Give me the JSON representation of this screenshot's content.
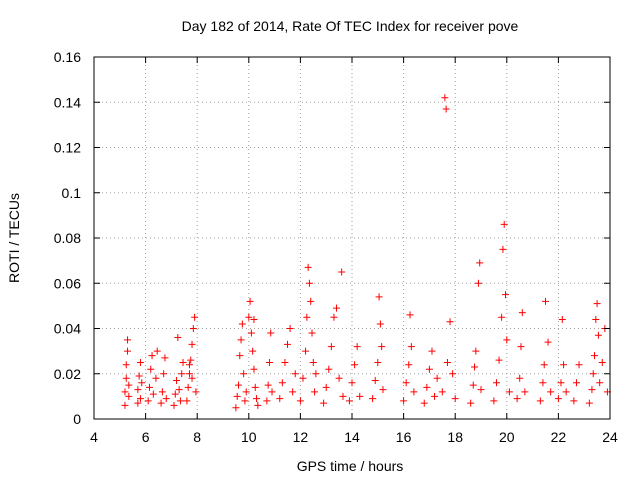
{
  "chart_data": {
    "type": "scatter",
    "title": "Day 182 of 2014, Rate Of TEC Index for receiver pove",
    "xlabel": "GPS time / hours",
    "ylabel": "ROTI / TECUs",
    "xlim": [
      4,
      24
    ],
    "ylim": [
      0,
      0.16
    ],
    "xticks": [
      4,
      6,
      8,
      10,
      12,
      14,
      16,
      18,
      20,
      22,
      24
    ],
    "xtick_labels": [
      "4",
      "6",
      "8",
      "10",
      "12",
      "14",
      "16",
      "18",
      "20",
      "22",
      "24"
    ],
    "yticks": [
      0,
      0.02,
      0.04,
      0.06,
      0.08,
      0.1,
      0.12,
      0.14,
      0.16
    ],
    "ytick_labels": [
      "0",
      "0.02",
      "0.04",
      "0.06",
      "0.08",
      "0.1",
      "0.12",
      "0.14",
      "0.16"
    ],
    "grid": true,
    "marker": "+",
    "series": [
      {
        "name": "ROTI",
        "color": "#ff0000",
        "points": [
          [
            5.2,
            0.006
          ],
          [
            5.2,
            0.012
          ],
          [
            5.25,
            0.018
          ],
          [
            5.25,
            0.024
          ],
          [
            5.3,
            0.03
          ],
          [
            5.3,
            0.035
          ],
          [
            5.35,
            0.01
          ],
          [
            5.35,
            0.015
          ],
          [
            5.7,
            0.007
          ],
          [
            5.7,
            0.013
          ],
          [
            5.75,
            0.019
          ],
          [
            5.8,
            0.025
          ],
          [
            5.8,
            0.009
          ],
          [
            5.85,
            0.016
          ],
          [
            6.1,
            0.008
          ],
          [
            6.15,
            0.014
          ],
          [
            6.2,
            0.022
          ],
          [
            6.25,
            0.028
          ],
          [
            6.3,
            0.011
          ],
          [
            6.4,
            0.018
          ],
          [
            6.45,
            0.03
          ],
          [
            6.6,
            0.007
          ],
          [
            6.65,
            0.012
          ],
          [
            6.7,
            0.02
          ],
          [
            6.75,
            0.027
          ],
          [
            6.8,
            0.009
          ],
          [
            7.1,
            0.006
          ],
          [
            7.15,
            0.011
          ],
          [
            7.2,
            0.017
          ],
          [
            7.25,
            0.036
          ],
          [
            7.3,
            0.013
          ],
          [
            7.35,
            0.008
          ],
          [
            7.4,
            0.02
          ],
          [
            7.45,
            0.025
          ],
          [
            7.6,
            0.008
          ],
          [
            7.65,
            0.014
          ],
          [
            7.7,
            0.02
          ],
          [
            7.75,
            0.026
          ],
          [
            7.8,
            0.033
          ],
          [
            7.85,
            0.04
          ],
          [
            7.9,
            0.045
          ],
          [
            7.95,
            0.012
          ],
          [
            7.8,
            0.018
          ],
          [
            7.7,
            0.024
          ],
          [
            9.5,
            0.005
          ],
          [
            9.55,
            0.01
          ],
          [
            9.6,
            0.015
          ],
          [
            9.65,
            0.028
          ],
          [
            9.7,
            0.035
          ],
          [
            9.75,
            0.042
          ],
          [
            9.8,
            0.02
          ],
          [
            9.85,
            0.008
          ],
          [
            9.9,
            0.012
          ],
          [
            10.0,
            0.045
          ],
          [
            10.05,
            0.052
          ],
          [
            10.1,
            0.038
          ],
          [
            10.15,
            0.03
          ],
          [
            10.2,
            0.022
          ],
          [
            10.25,
            0.014
          ],
          [
            10.3,
            0.009
          ],
          [
            10.2,
            0.044
          ],
          [
            10.35,
            0.006
          ],
          [
            10.7,
            0.008
          ],
          [
            10.75,
            0.015
          ],
          [
            10.8,
            0.025
          ],
          [
            10.85,
            0.038
          ],
          [
            10.9,
            0.012
          ],
          [
            11.2,
            0.009
          ],
          [
            11.3,
            0.016
          ],
          [
            11.4,
            0.025
          ],
          [
            11.5,
            0.033
          ],
          [
            11.6,
            0.04
          ],
          [
            11.7,
            0.012
          ],
          [
            11.8,
            0.02
          ],
          [
            12.0,
            0.008
          ],
          [
            12.1,
            0.018
          ],
          [
            12.2,
            0.03
          ],
          [
            12.25,
            0.045
          ],
          [
            12.3,
            0.067
          ],
          [
            12.35,
            0.06
          ],
          [
            12.4,
            0.052
          ],
          [
            12.45,
            0.038
          ],
          [
            12.5,
            0.025
          ],
          [
            12.55,
            0.012
          ],
          [
            12.6,
            0.02
          ],
          [
            12.9,
            0.007
          ],
          [
            13.0,
            0.014
          ],
          [
            13.1,
            0.022
          ],
          [
            13.2,
            0.032
          ],
          [
            13.3,
            0.045
          ],
          [
            13.4,
            0.049
          ],
          [
            13.5,
            0.018
          ],
          [
            13.6,
            0.065
          ],
          [
            13.65,
            0.01
          ],
          [
            13.9,
            0.008
          ],
          [
            14.0,
            0.016
          ],
          [
            14.1,
            0.024
          ],
          [
            14.2,
            0.032
          ],
          [
            14.3,
            0.01
          ],
          [
            14.8,
            0.009
          ],
          [
            14.9,
            0.017
          ],
          [
            15.0,
            0.025
          ],
          [
            15.05,
            0.054
          ],
          [
            15.1,
            0.042
          ],
          [
            15.15,
            0.032
          ],
          [
            15.2,
            0.013
          ],
          [
            16.0,
            0.008
          ],
          [
            16.1,
            0.016
          ],
          [
            16.2,
            0.024
          ],
          [
            16.25,
            0.046
          ],
          [
            16.3,
            0.032
          ],
          [
            16.4,
            0.012
          ],
          [
            16.8,
            0.007
          ],
          [
            16.9,
            0.014
          ],
          [
            17.0,
            0.022
          ],
          [
            17.1,
            0.03
          ],
          [
            17.2,
            0.01
          ],
          [
            17.3,
            0.018
          ],
          [
            17.5,
            0.012
          ],
          [
            17.6,
            0.142
          ],
          [
            17.65,
            0.137
          ],
          [
            17.7,
            0.025
          ],
          [
            17.8,
            0.043
          ],
          [
            17.9,
            0.02
          ],
          [
            18.0,
            0.009
          ],
          [
            18.6,
            0.007
          ],
          [
            18.7,
            0.015
          ],
          [
            18.75,
            0.023
          ],
          [
            18.8,
            0.03
          ],
          [
            18.9,
            0.06
          ],
          [
            18.95,
            0.069
          ],
          [
            19.0,
            0.013
          ],
          [
            19.5,
            0.008
          ],
          [
            19.6,
            0.016
          ],
          [
            19.7,
            0.026
          ],
          [
            19.8,
            0.045
          ],
          [
            19.85,
            0.075
          ],
          [
            19.9,
            0.086
          ],
          [
            19.95,
            0.055
          ],
          [
            20.0,
            0.035
          ],
          [
            20.1,
            0.012
          ],
          [
            20.4,
            0.009
          ],
          [
            20.5,
            0.018
          ],
          [
            20.55,
            0.032
          ],
          [
            20.6,
            0.047
          ],
          [
            20.7,
            0.012
          ],
          [
            21.3,
            0.008
          ],
          [
            21.4,
            0.016
          ],
          [
            21.45,
            0.024
          ],
          [
            21.5,
            0.052
          ],
          [
            21.6,
            0.034
          ],
          [
            21.7,
            0.012
          ],
          [
            22.0,
            0.009
          ],
          [
            22.1,
            0.016
          ],
          [
            22.15,
            0.044
          ],
          [
            22.2,
            0.024
          ],
          [
            22.3,
            0.012
          ],
          [
            22.6,
            0.008
          ],
          [
            22.7,
            0.016
          ],
          [
            22.8,
            0.024
          ],
          [
            23.2,
            0.007
          ],
          [
            23.3,
            0.013
          ],
          [
            23.35,
            0.02
          ],
          [
            23.4,
            0.028
          ],
          [
            23.45,
            0.044
          ],
          [
            23.5,
            0.051
          ],
          [
            23.55,
            0.037
          ],
          [
            23.6,
            0.016
          ],
          [
            23.7,
            0.025
          ],
          [
            23.8,
            0.04
          ],
          [
            23.9,
            0.012
          ]
        ]
      }
    ]
  }
}
